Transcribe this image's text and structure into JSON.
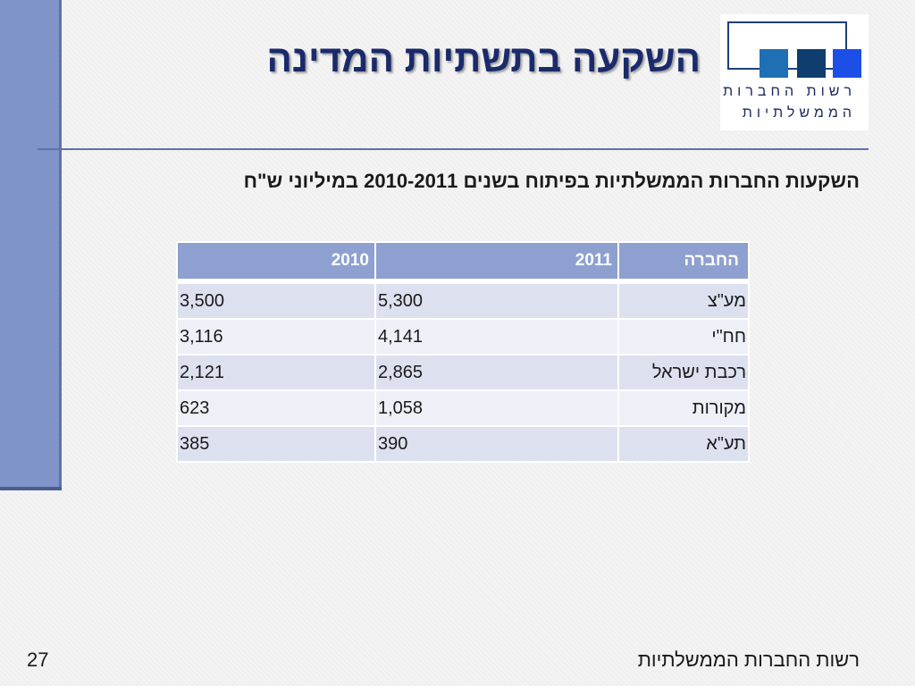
{
  "slide": {
    "title": "השקעה בתשתיות המדינה",
    "subtitle": "השקעות החברות הממשלתיות בפיתוח בשנים  2010-2011 במיליוני ש\"ח"
  },
  "logo": {
    "line1": "רשות החברות",
    "line2": "הממשלתיות"
  },
  "table": {
    "headers": {
      "company": "החברה",
      "y2011": "2011",
      "y2010": "2010"
    },
    "rows": [
      {
        "company": "מע\"צ",
        "y2011": "5,300",
        "y2010": "3,500"
      },
      {
        "company": "חח\"י",
        "y2011": "4,141",
        "y2010": "3,116"
      },
      {
        "company": "רכבת ישראל",
        "y2011": "2,865",
        "y2010": "2,121"
      },
      {
        "company": "מקורות",
        "y2011": "1,058",
        "y2010": "623"
      },
      {
        "company": "תע\"א",
        "y2011": "390",
        "y2010": "385"
      }
    ]
  },
  "footer": {
    "page_number": "27",
    "org_name": "רשות החברות הממשלתיות"
  },
  "colors": {
    "title": "#1a2a6b",
    "side_bar": "#7f95c9",
    "table_header": "#8ea0cf",
    "row_odd": "#dde1ef",
    "row_even": "#eef0f7"
  }
}
